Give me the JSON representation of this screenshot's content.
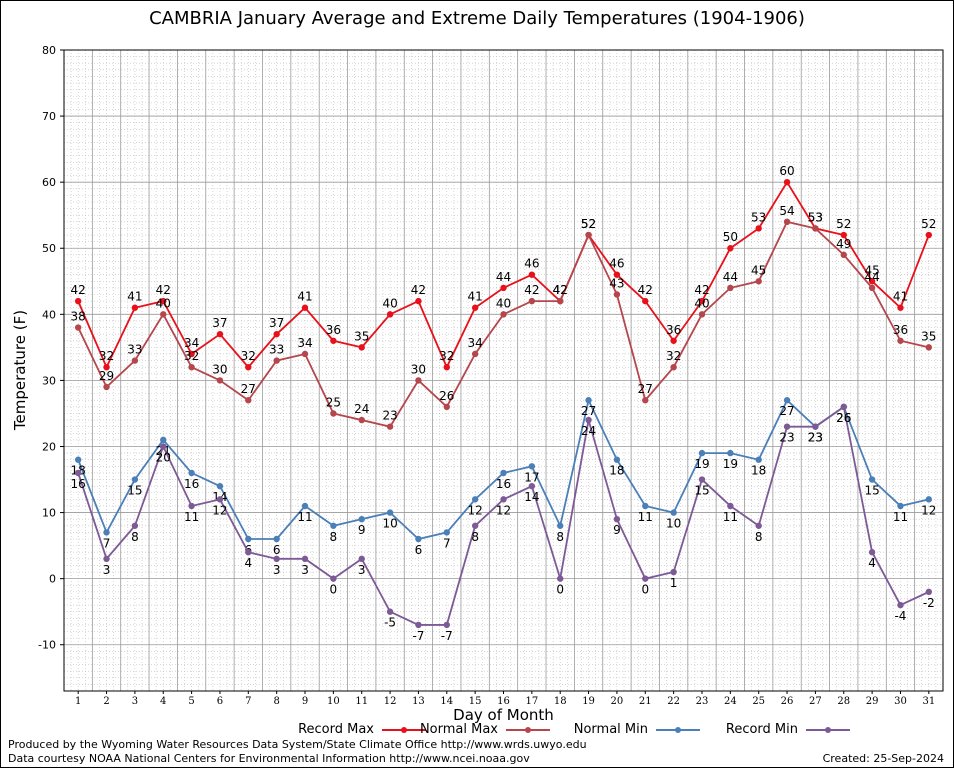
{
  "chart_data": {
    "type": "line",
    "title": "CAMBRIA January Average and Extreme Daily Temperatures (1904-1906)",
    "xlabel": "Day of Month",
    "ylabel": "Temperature (F)",
    "ylim": [
      -17,
      80
    ],
    "yticks": [
      -10,
      0,
      10,
      20,
      30,
      40,
      50,
      60,
      70,
      80
    ],
    "grid": true,
    "legend_position": "bottom",
    "x": [
      1,
      2,
      3,
      4,
      5,
      6,
      7,
      8,
      9,
      10,
      11,
      12,
      13,
      14,
      15,
      16,
      17,
      18,
      19,
      20,
      21,
      22,
      23,
      24,
      25,
      26,
      27,
      28,
      29,
      30,
      31
    ],
    "series": [
      {
        "name": "Record Max",
        "color": "#e8101a",
        "label_side": "top",
        "values": [
          42,
          32,
          41,
          42,
          34,
          37,
          32,
          37,
          41,
          36,
          35,
          40,
          42,
          32,
          41,
          44,
          46,
          42,
          52,
          46,
          42,
          36,
          42,
          50,
          53,
          60,
          53,
          52,
          45,
          41,
          52
        ]
      },
      {
        "name": "Normal Max",
        "color": "#b5464c",
        "label_side": "top",
        "values": [
          38,
          29,
          33,
          40,
          32,
          30,
          27,
          33,
          34,
          25,
          24,
          23,
          30,
          26,
          34,
          40,
          42,
          42,
          52,
          43,
          27,
          32,
          40,
          44,
          45,
          54,
          53,
          49,
          44,
          36,
          35
        ]
      },
      {
        "name": "Normal Min",
        "color": "#4a7fb8",
        "label_side": "bottom",
        "values": [
          18,
          7,
          15,
          21,
          16,
          14,
          6,
          6,
          11,
          8,
          9,
          10,
          6,
          7,
          12,
          16,
          17,
          8,
          27,
          18,
          11,
          10,
          19,
          19,
          18,
          27,
          23,
          26,
          15,
          11,
          12
        ]
      },
      {
        "name": "Record Min",
        "color": "#7d5a96",
        "label_side": "bottom",
        "values": [
          16,
          3,
          8,
          20,
          11,
          12,
          4,
          3,
          3,
          0,
          3,
          -5,
          -7,
          -7,
          8,
          12,
          14,
          0,
          24,
          9,
          0,
          1,
          15,
          11,
          8,
          23,
          23,
          26,
          4,
          -4,
          -2
        ]
      }
    ]
  },
  "footer": {
    "produced_by": "Produced by the Wyoming Water Resources Data System/State Climate Office http://www.wrds.uwyo.edu",
    "data_courtesy": "Data courtesy NOAA National Centers for Environmental Information http://www.ncei.noaa.gov",
    "created": "Created:  25-Sep-2024"
  }
}
